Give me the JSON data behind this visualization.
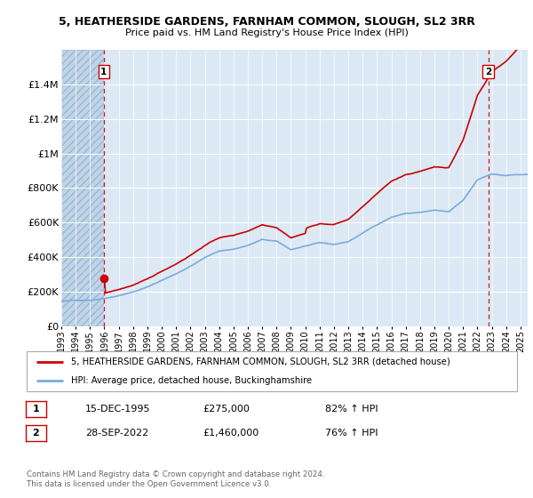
{
  "title": "5, HEATHERSIDE GARDENS, FARNHAM COMMON, SLOUGH, SL2 3RR",
  "subtitle": "Price paid vs. HM Land Registry's House Price Index (HPI)",
  "ylim": [
    0,
    1600000
  ],
  "yticks": [
    0,
    200000,
    400000,
    600000,
    800000,
    1000000,
    1200000,
    1400000
  ],
  "ytick_labels": [
    "£0",
    "£200K",
    "£400K",
    "£600K",
    "£800K",
    "£1M",
    "£1.2M",
    "£1.4M"
  ],
  "bg_color": "#dce9f5",
  "hatch_color": "#c0d4e8",
  "grid_color": "#ffffff",
  "red_line_color": "#cc0000",
  "blue_line_color": "#7aabdb",
  "marker1_date": 1995.958,
  "marker1_value": 275000,
  "marker2_date": 2022.75,
  "marker2_value": 1460000,
  "vline1_x": 1995.958,
  "vline2_x": 2022.75,
  "legend_line1": "5, HEATHERSIDE GARDENS, FARNHAM COMMON, SLOUGH, SL2 3RR (detached house)",
  "legend_line2": "HPI: Average price, detached house, Buckinghamshire",
  "annotation1_date": "15-DEC-1995",
  "annotation1_price": "£275,000",
  "annotation1_hpi": "82% ↑ HPI",
  "annotation2_date": "28-SEP-2022",
  "annotation2_price": "£1,460,000",
  "annotation2_hpi": "76% ↑ HPI",
  "footer": "Contains HM Land Registry data © Crown copyright and database right 2024.\nThis data is licensed under the Open Government Licence v3.0.",
  "xmin": 1993.0,
  "xmax": 2025.5,
  "hatch_x_end": 1995.958
}
